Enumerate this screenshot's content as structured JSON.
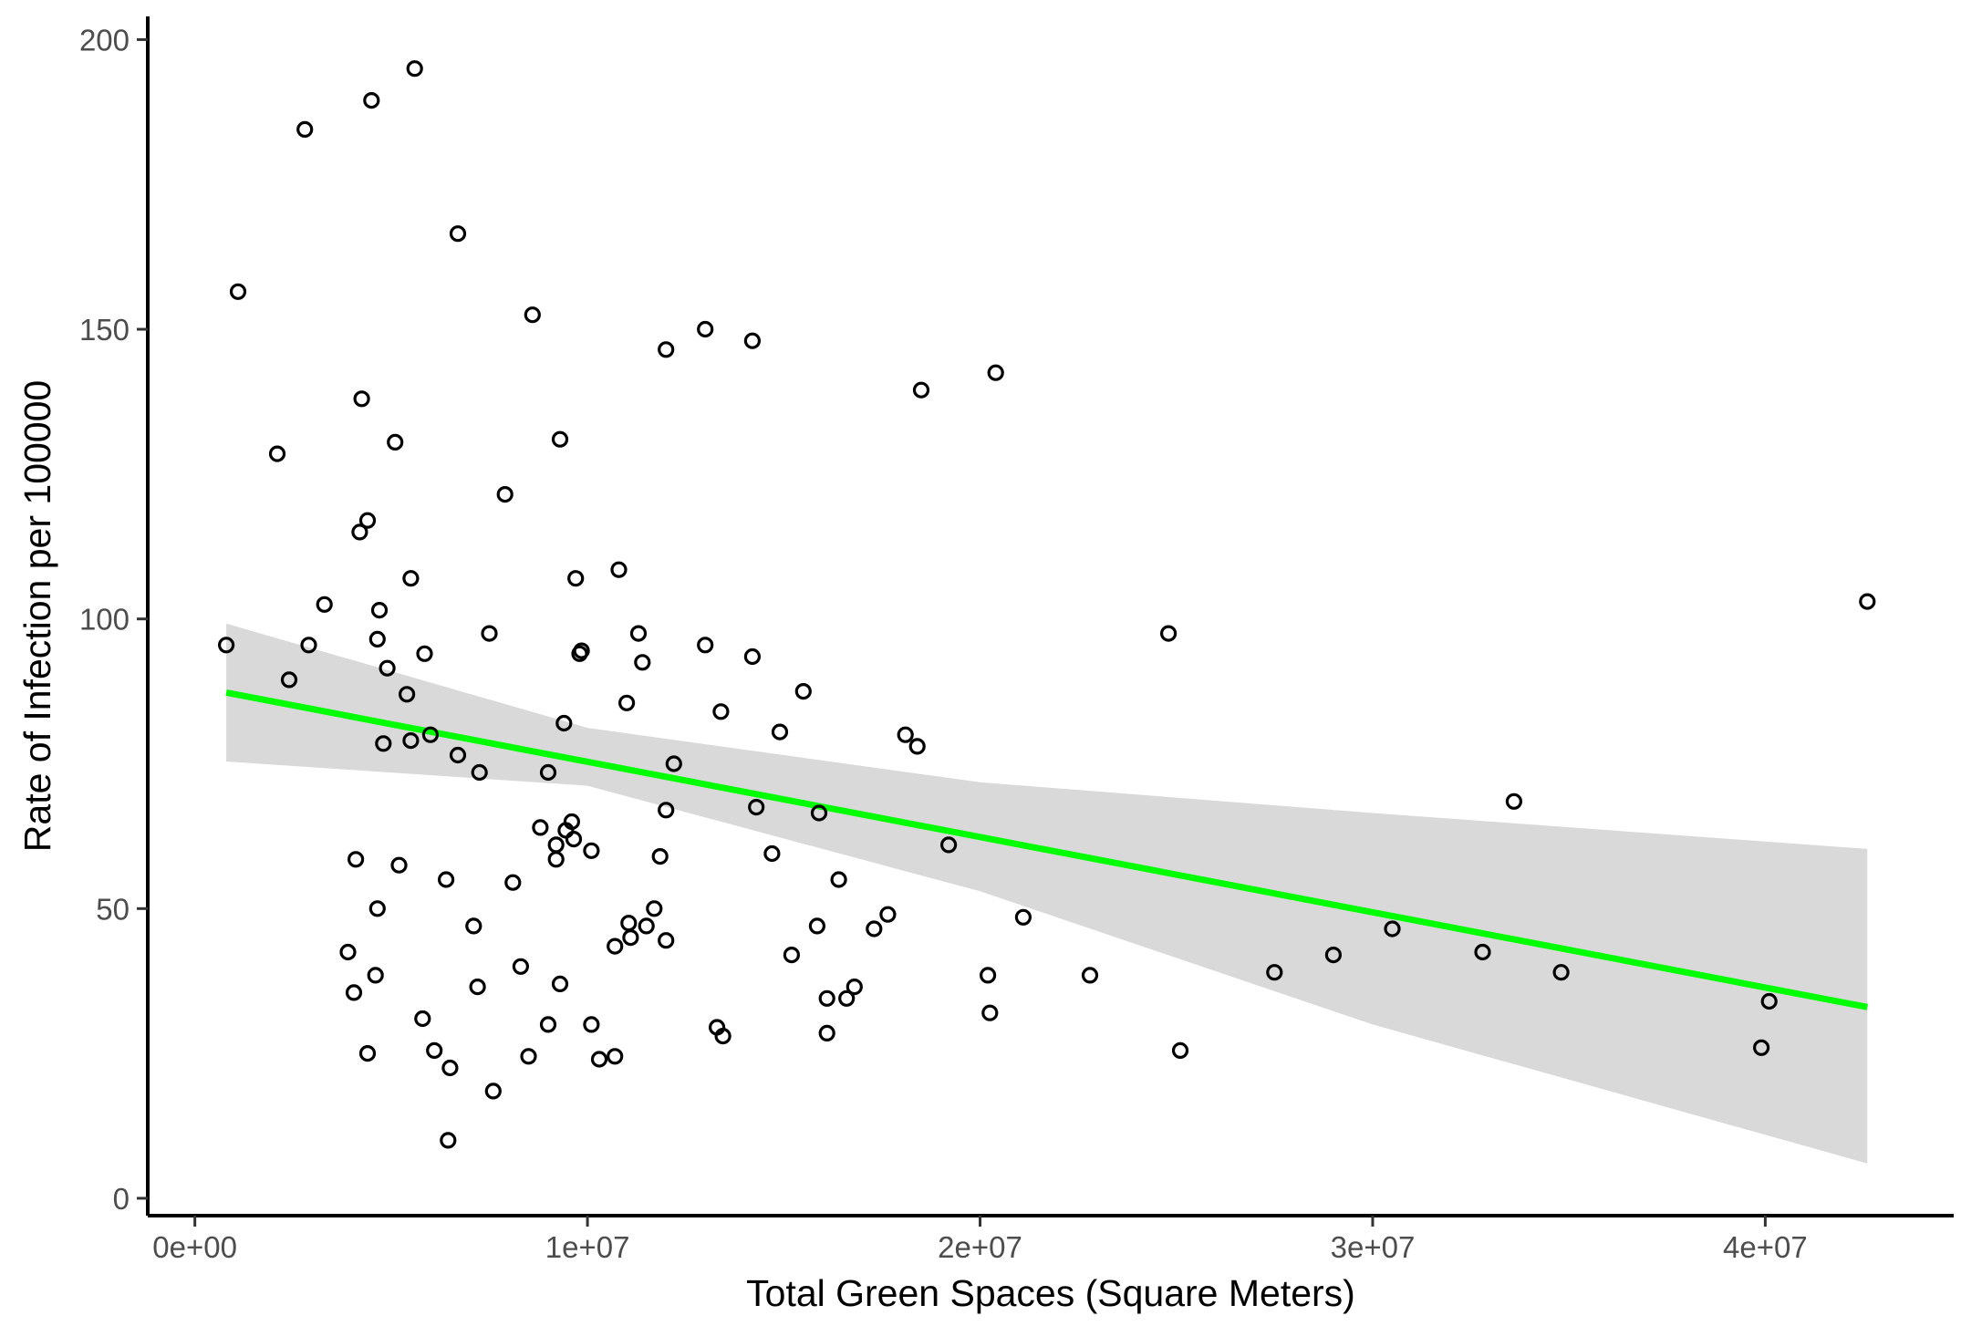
{
  "chart_data": {
    "type": "scatter",
    "title": "",
    "xlabel": "Total Green Spaces (Square Meters)",
    "ylabel": "Rate of Infection per 100000",
    "xlim": [
      -1200000,
      44800000
    ],
    "ylim": [
      -3,
      204
    ],
    "x_ticks": [
      0,
      10000000,
      20000000,
      30000000,
      40000000
    ],
    "x_tick_labels": [
      "0e+00",
      "1e+07",
      "2e+07",
      "3e+07",
      "4e+07"
    ],
    "y_ticks": [
      0,
      50,
      100,
      150,
      200
    ],
    "y_tick_labels": [
      "0",
      "50",
      "100",
      "150",
      "200"
    ],
    "grid": false,
    "point_style": "open-circle",
    "points": [
      [
        800000,
        95.5
      ],
      [
        1100000,
        156.5
      ],
      [
        2100000,
        128.5
      ],
      [
        2400000,
        89.5
      ],
      [
        2800000,
        184.5
      ],
      [
        2900000,
        95.5
      ],
      [
        3300000,
        102.5
      ],
      [
        3900000,
        42.5
      ],
      [
        4050000,
        35.5
      ],
      [
        4100000,
        58.5
      ],
      [
        4200000,
        115.0
      ],
      [
        4250000,
        138.0
      ],
      [
        4400000,
        25.0
      ],
      [
        4400000,
        117.0
      ],
      [
        4500000,
        189.5
      ],
      [
        4600000,
        38.5
      ],
      [
        4650000,
        96.5
      ],
      [
        4650000,
        50.0
      ],
      [
        4700000,
        101.5
      ],
      [
        4800000,
        78.5
      ],
      [
        4900000,
        91.5
      ],
      [
        5100000,
        130.5
      ],
      [
        5200000,
        57.5
      ],
      [
        5400000,
        87.0
      ],
      [
        5500000,
        79.0
      ],
      [
        5500000,
        107.0
      ],
      [
        5600000,
        195.0
      ],
      [
        5800000,
        31.0
      ],
      [
        5850000,
        94.0
      ],
      [
        6000000,
        80.0
      ],
      [
        6100000,
        25.5
      ],
      [
        6400000,
        55.0
      ],
      [
        6450000,
        10.0
      ],
      [
        6500000,
        22.5
      ],
      [
        6700000,
        76.5
      ],
      [
        6700000,
        166.5
      ],
      [
        7100000,
        47.0
      ],
      [
        7200000,
        36.5
      ],
      [
        7250000,
        73.5
      ],
      [
        7500000,
        97.5
      ],
      [
        7600000,
        18.5
      ],
      [
        7900000,
        121.5
      ],
      [
        8100000,
        54.5
      ],
      [
        8300000,
        40.0
      ],
      [
        8500000,
        24.5
      ],
      [
        8600000,
        152.5
      ],
      [
        8800000,
        64.0
      ],
      [
        9000000,
        73.5
      ],
      [
        9000000,
        30.0
      ],
      [
        9200000,
        58.5
      ],
      [
        9200000,
        61.0
      ],
      [
        9300000,
        37.0
      ],
      [
        9300000,
        131.0
      ],
      [
        9400000,
        82.0
      ],
      [
        9450000,
        63.5
      ],
      [
        9600000,
        65.0
      ],
      [
        9650000,
        62.0
      ],
      [
        9700000,
        107.0
      ],
      [
        9800000,
        94.0
      ],
      [
        9850000,
        94.5
      ],
      [
        10100000,
        60.0
      ],
      [
        10100000,
        30.0
      ],
      [
        10300000,
        24.0
      ],
      [
        10700000,
        43.5
      ],
      [
        10700000,
        24.5
      ],
      [
        10800000,
        108.5
      ],
      [
        11000000,
        85.5
      ],
      [
        11050000,
        47.5
      ],
      [
        11100000,
        45.0
      ],
      [
        11300000,
        97.5
      ],
      [
        11400000,
        92.5
      ],
      [
        11500000,
        47.0
      ],
      [
        11700000,
        50.0
      ],
      [
        11850000,
        59.0
      ],
      [
        12000000,
        67.0
      ],
      [
        12000000,
        44.5
      ],
      [
        12000000,
        146.5
      ],
      [
        12200000,
        75.0
      ],
      [
        13000000,
        95.5
      ],
      [
        13000000,
        150.0
      ],
      [
        13300000,
        29.5
      ],
      [
        13400000,
        84.0
      ],
      [
        13450000,
        28.0
      ],
      [
        14200000,
        93.5
      ],
      [
        14200000,
        148.0
      ],
      [
        14300000,
        67.5
      ],
      [
        14700000,
        59.5
      ],
      [
        14900000,
        80.5
      ],
      [
        15200000,
        42.0
      ],
      [
        15500000,
        87.5
      ],
      [
        15850000,
        47.0
      ],
      [
        15900000,
        66.5
      ],
      [
        16100000,
        28.5
      ],
      [
        16100000,
        34.5
      ],
      [
        16400000,
        55.0
      ],
      [
        16600000,
        34.5
      ],
      [
        16800000,
        36.5
      ],
      [
        17300000,
        46.5
      ],
      [
        17650000,
        49.0
      ],
      [
        18100000,
        80.0
      ],
      [
        18400000,
        78.0
      ],
      [
        18500000,
        139.5
      ],
      [
        19200000,
        61.0
      ],
      [
        20200000,
        38.5
      ],
      [
        20250000,
        32.0
      ],
      [
        20400000,
        142.5
      ],
      [
        21100000,
        48.5
      ],
      [
        22800000,
        38.5
      ],
      [
        24800000,
        97.5
      ],
      [
        25100000,
        25.5
      ],
      [
        27500000,
        39.0
      ],
      [
        29000000,
        42.0
      ],
      [
        30500000,
        46.5
      ],
      [
        32800000,
        42.5
      ],
      [
        33600000,
        68.5
      ],
      [
        34800000,
        39.0
      ],
      [
        39900000,
        26.0
      ],
      [
        40100000,
        34.0
      ],
      [
        42600000,
        103.0
      ]
    ],
    "series": [
      {
        "type": "smooth-line",
        "color": "#00ff00",
        "x": [
          800000,
          42600000
        ],
        "y": [
          87.3,
          33.0
        ]
      }
    ],
    "confidence_band": {
      "color": "#d9d9d9",
      "x": [
        800000,
        10000000,
        20000000,
        30000000,
        42600000
      ],
      "lower": [
        75.4,
        71.2,
        53.0,
        30.0,
        6.0
      ],
      "upper": [
        99.2,
        81.2,
        71.8,
        66.5,
        60.3
      ]
    }
  }
}
